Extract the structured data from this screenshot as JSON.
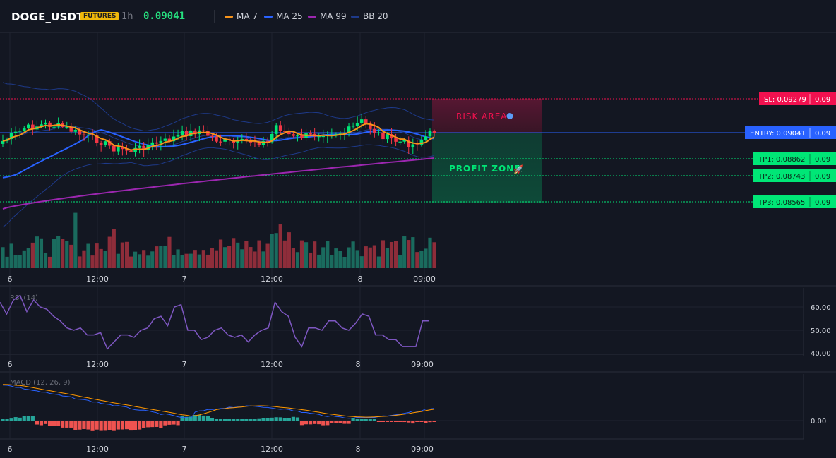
{
  "header": {
    "symbol": "DOGE_USDT",
    "badge": "FUTURES",
    "timeframe": "1h",
    "price": "0.09041",
    "legend": [
      {
        "label": "MA 7",
        "color": "#f7931a"
      },
      {
        "label": "MA 25",
        "color": "#2962ff"
      },
      {
        "label": "MA 99",
        "color": "#9c27b0"
      },
      {
        "label": "BB 20",
        "color": "#1e3a8a"
      }
    ]
  },
  "colors": {
    "background": "#131722",
    "up": "#00e676",
    "down": "#f23645",
    "volume_up": "#1a6b5e",
    "volume_down": "#8e2d3a",
    "rsi": "#7e57c2",
    "macd": "#2962ff",
    "signal": "#ff9800",
    "sl": "#f2114f",
    "entry": "#2962ff",
    "tp": "#00e676"
  },
  "levels": {
    "sl": "SL: 0.09279",
    "entry": "ENTRY: 0.09041",
    "tp1": "TP1: 0.08862",
    "tp2": "TP2: 0.08743",
    "tp3": "TP3: 0.08565",
    "suffix": "0.09"
  },
  "zones": {
    "risk": "RISK AREA",
    "profit": "PROFIT ZONE"
  },
  "x_axis": [
    "6",
    "12:00",
    "7",
    "12:00",
    "8",
    "09:00"
  ],
  "rsi": {
    "label": "RSI (14)",
    "ticks": [
      "60.00",
      "50.00",
      "40.00"
    ],
    "values": [
      62,
      57,
      63,
      65,
      58,
      63,
      60,
      59,
      56,
      54,
      51,
      50,
      51,
      48,
      48,
      49,
      42,
      45,
      48,
      48,
      47,
      50,
      51,
      55,
      56,
      52,
      60,
      61,
      50,
      50,
      46,
      47,
      50,
      51,
      48,
      47,
      48,
      45,
      48,
      50,
      51,
      62,
      58,
      56,
      47,
      43,
      51,
      51,
      50,
      54,
      54,
      51,
      50,
      53,
      57,
      56,
      48,
      48,
      46,
      46,
      43,
      43,
      43,
      54,
      54
    ]
  },
  "macd": {
    "label": "MACD (12, 26, 9)",
    "tick": "0.00"
  }
}
